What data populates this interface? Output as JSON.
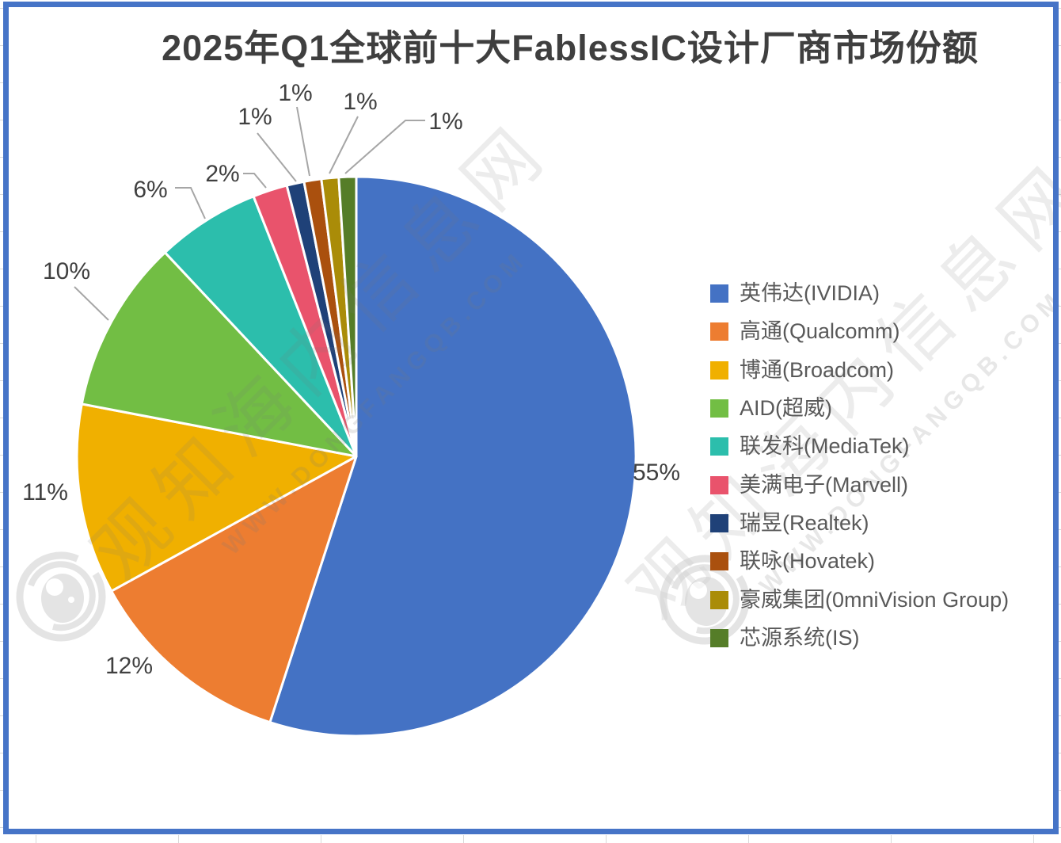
{
  "title": "2025年Q1全球前十大FablessIC设计厂商市场份额",
  "chart_data": {
    "type": "pie",
    "title": "2025年Q1全球前十大FablessIC设计厂商市场份额",
    "legend_position": "right",
    "labels_style": "outside percentage with leader lines",
    "direction": "clockwise",
    "start_angle_deg": 0,
    "series": [
      {
        "name": "英伟达(IVIDIA)",
        "value": 55,
        "label": "55%",
        "color": "#4472C4"
      },
      {
        "name": "高通(Qualcomm)",
        "value": 12,
        "label": "12%",
        "color": "#ED7D31"
      },
      {
        "name": "博通(Broadcom)",
        "value": 11,
        "label": "11%",
        "color": "#F0B000"
      },
      {
        "name": "AID(超威)",
        "value": 10,
        "label": "10%",
        "color": "#72BE44"
      },
      {
        "name": "联发科(MediaTek)",
        "value": 6,
        "label": "6%",
        "color": "#2CBEAC"
      },
      {
        "name": "美满电子(Marvell)",
        "value": 2,
        "label": "2%",
        "color": "#E9536C"
      },
      {
        "name": "瑞昱(Realtek)",
        "value": 1,
        "label": "1%",
        "color": "#1F4178"
      },
      {
        "name": "联咏(Hovatek)",
        "value": 1,
        "label": "1%",
        "color": "#AA500E"
      },
      {
        "name": "豪威集团(0mniVision Group)",
        "value": 1,
        "label": "1%",
        "color": "#AA8C08"
      },
      {
        "name": "芯源系统(IS)",
        "value": 1,
        "label": "1%",
        "color": "#557D28"
      }
    ]
  },
  "watermark": {
    "site_name": "观知海内信息网",
    "site_url": "WWW.DONGFANGQB.COM"
  }
}
